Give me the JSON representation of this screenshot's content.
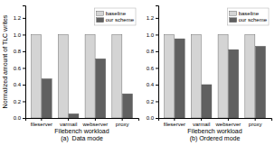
{
  "chart_data": [
    {
      "type": "bar",
      "categories": [
        "fileserver",
        "varmail",
        "webserver",
        "proxy"
      ],
      "series": [
        {
          "name": "baseline",
          "color": "#d4d4d4",
          "values": [
            1.0,
            1.0,
            1.0,
            1.0
          ]
        },
        {
          "name": "our scheme",
          "color": "#606060",
          "values": [
            0.47,
            0.05,
            0.71,
            0.29
          ]
        }
      ],
      "xlabel": "Filebench workload\n(a)  Data mode",
      "ylabel": "Normalized amount of TLC writes",
      "ylim": [
        0,
        1.35
      ],
      "yticks": [
        {
          "value": 0,
          "label": "0.0"
        },
        0.2,
        0.4,
        0.6,
        0.8,
        {
          "value": 1,
          "label": "1.0"
        },
        1.2
      ],
      "legend": "upper right",
      "grid": false
    },
    {
      "type": "bar",
      "categories": [
        "fileserver",
        "varmail",
        "webserver",
        "proxy"
      ],
      "series": [
        {
          "name": "baseline",
          "color": "#d4d4d4",
          "values": [
            1.0,
            1.0,
            1.0,
            1.0
          ]
        },
        {
          "name": "our scheme",
          "color": "#606060",
          "values": [
            0.95,
            0.4,
            0.82,
            0.86
          ]
        }
      ],
      "xlabel": "Filebench workload\n(b) Ordered mode",
      "ylim": [
        0,
        1.35
      ],
      "yticks": [
        {
          "value": 0,
          "label": "0.0"
        },
        0.2,
        0.4,
        0.6,
        0.8,
        {
          "value": 1,
          "label": "1.0"
        },
        1.2
      ],
      "legend": "upper right",
      "grid": false
    }
  ]
}
